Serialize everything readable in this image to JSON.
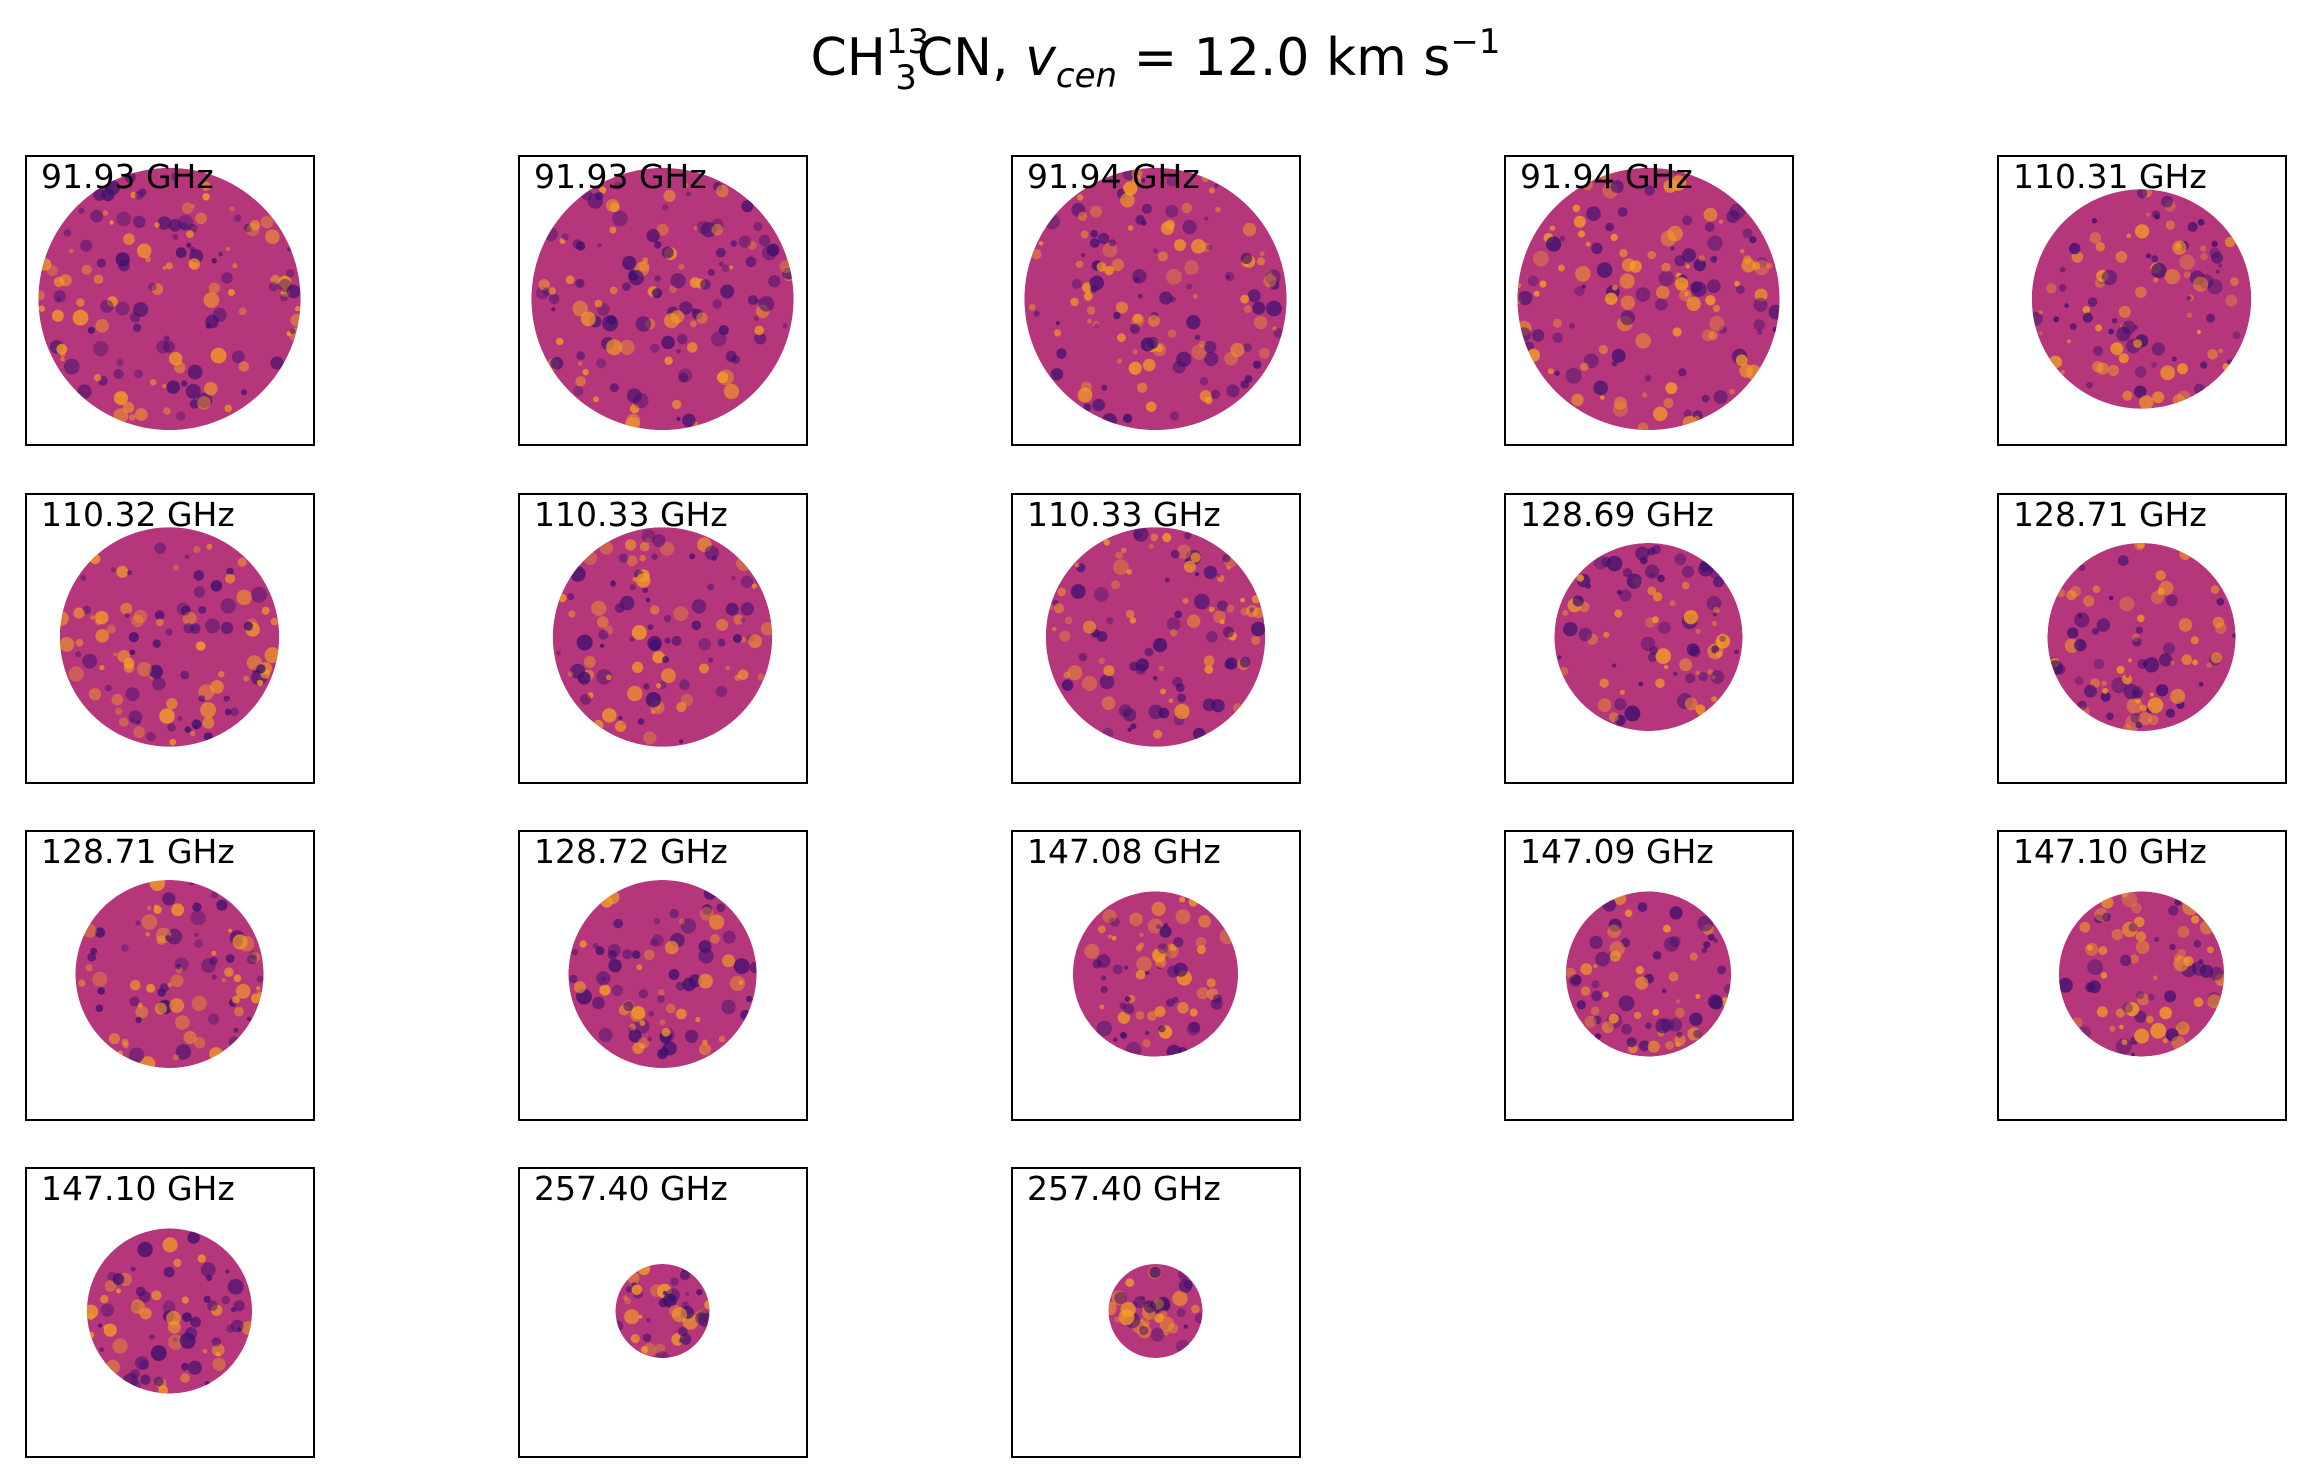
{
  "figure": {
    "title": {
      "mol_pre": "CH",
      "mol_sup": "13",
      "mol_sub": "3",
      "mol_post": "CN, ",
      "v_symbol": "v",
      "v_sub": "cen",
      "v_rest": " =  12.0 km s",
      "unit_sup": "−1"
    },
    "colormap": "inferno",
    "colors": {
      "dark": "#3b0f6f",
      "mid": "#b5367a",
      "bright": "#f5a023"
    },
    "panels": [
      {
        "label": "91.93 GHz",
        "disk_fraction": 0.92
      },
      {
        "label": "91.93 GHz",
        "disk_fraction": 0.92
      },
      {
        "label": "91.94 GHz",
        "disk_fraction": 0.92
      },
      {
        "label": "91.94 GHz",
        "disk_fraction": 0.92
      },
      {
        "label": "110.31 GHz",
        "disk_fraction": 0.77
      },
      {
        "label": "110.32 GHz",
        "disk_fraction": 0.77
      },
      {
        "label": "110.33 GHz",
        "disk_fraction": 0.77
      },
      {
        "label": "110.33 GHz",
        "disk_fraction": 0.77
      },
      {
        "label": "128.69 GHz",
        "disk_fraction": 0.66
      },
      {
        "label": "128.71 GHz",
        "disk_fraction": 0.66
      },
      {
        "label": "128.71 GHz",
        "disk_fraction": 0.66
      },
      {
        "label": "128.72 GHz",
        "disk_fraction": 0.66
      },
      {
        "label": "147.08 GHz",
        "disk_fraction": 0.58
      },
      {
        "label": "147.09 GHz",
        "disk_fraction": 0.58
      },
      {
        "label": "147.10 GHz",
        "disk_fraction": 0.58
      },
      {
        "label": "147.10 GHz",
        "disk_fraction": 0.58
      },
      {
        "label": "257.40 GHz",
        "disk_fraction": 0.33
      },
      {
        "label": "257.40 GHz",
        "disk_fraction": 0.33
      }
    ]
  }
}
